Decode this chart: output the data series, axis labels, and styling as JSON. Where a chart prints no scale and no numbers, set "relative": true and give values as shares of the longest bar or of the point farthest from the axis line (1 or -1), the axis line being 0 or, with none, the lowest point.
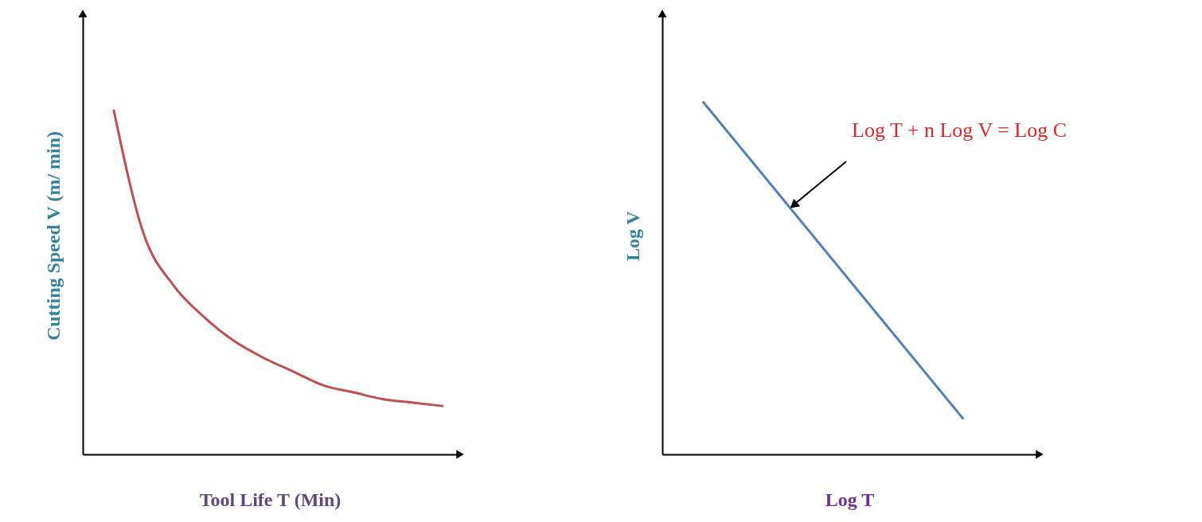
{
  "chart_data": [
    {
      "type": "line",
      "relative": true,
      "tick_labels": false,
      "grid": false,
      "xlabel": "Tool Life T (Min)",
      "ylabel": "Cutting Speed V (m/ min)",
      "categories": [
        null,
        null,
        null,
        null,
        null,
        null,
        null,
        null,
        null,
        null,
        null,
        null
      ],
      "series": [
        {
          "color": "#c0504d",
          "values": [
            1,
            0.64,
            0.49,
            0.4,
            0.33,
            0.28,
            0.24,
            0.2,
            0.18,
            0.16,
            0.15,
            0.14
          ]
        }
      ]
    },
    {
      "type": "line",
      "relative": true,
      "tick_labels": false,
      "grid": false,
      "xlabel": "Log T",
      "ylabel": "Log V",
      "categories": [
        null,
        null
      ],
      "series": [
        {
          "color": "#4f81bd",
          "values": [
            1,
            0.1
          ]
        }
      ],
      "annotations": [
        "Log T + n Log V = Log C"
      ]
    }
  ]
}
